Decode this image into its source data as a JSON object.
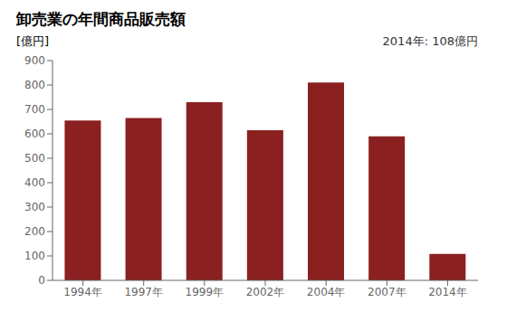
{
  "chart_data": {
    "type": "bar",
    "title": "卸売業の年間商品販売額",
    "y_label": "[億円]",
    "annotation": "2014年: 108億円",
    "categories": [
      "1994年",
      "1997年",
      "1999年",
      "2002年",
      "2004年",
      "2007年",
      "2014年"
    ],
    "values": [
      655,
      665,
      730,
      615,
      810,
      590,
      108
    ],
    "color": "#8B2020",
    "ylim": [
      0,
      900
    ],
    "yticks": [
      0,
      100,
      200,
      300,
      400,
      500,
      600,
      700,
      800,
      900
    ],
    "grid": false
  }
}
